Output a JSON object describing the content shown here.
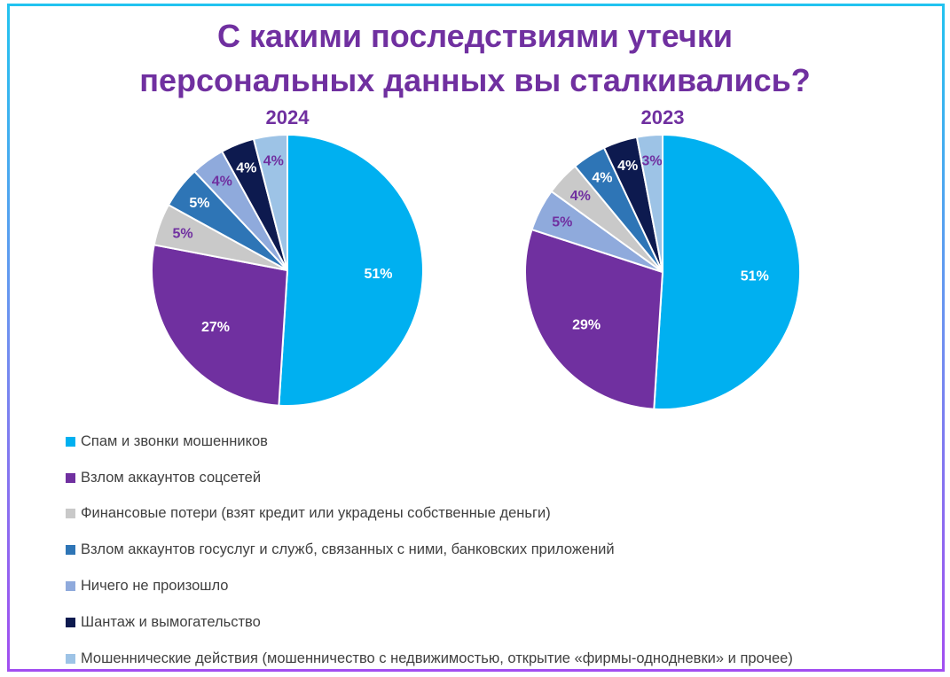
{
  "title_lines": [
    "С какими последствиями утечки",
    "персональных данных вы сталкивались?"
  ],
  "chart_data": [
    {
      "type": "pie",
      "title": "2024",
      "categories": [
        "Спам и звонки мошенников",
        "Взлом аккаунтов соцсетей",
        "Финансовые потери (взят кредит или украдены собственные деньги)",
        "Взлом аккаунтов госуслуг и служб, связанных с ними, банковских приложений",
        "Ничего не произошло",
        "Шантаж и вымогательство",
        "Мошеннические действия (мошенничество с недвижимостью, открытие «фирмы-однодневки» и прочее)"
      ],
      "values": [
        51,
        27,
        5,
        5,
        4,
        4,
        4
      ],
      "data_labels": [
        "51%",
        "27%",
        "5%",
        "5%",
        "4%",
        "4%",
        "4%"
      ]
    },
    {
      "type": "pie",
      "title": "2023",
      "categories": [
        "Спам и звонки мошенников",
        "Взлом аккаунтов соцсетей",
        "Ничего не произошло",
        "Финансовые потери (взят кредит или украдены собственные деньги)",
        "Взлом аккаунтов госуслуг и служб, связанных с ними, банковских приложений",
        "Шантаж и вымогательство",
        "Мошеннические действия (мошенничество с недвижимостью, открытие «фирмы-однодневки» и прочее)"
      ],
      "values": [
        51,
        29,
        5,
        4,
        4,
        4,
        3
      ],
      "data_labels": [
        "51%",
        "29%",
        "5%",
        "4%",
        "4%",
        "4%",
        "3%"
      ]
    }
  ],
  "legend": [
    {
      "label": "Спам и звонки мошенников",
      "color": "#00b0f0"
    },
    {
      "label": "Взлом аккаунтов соцсетей",
      "color": "#7030a0"
    },
    {
      "label": "Финансовые потери (взят кредит или украдены собственные деньги)",
      "color": "#c9c9c9"
    },
    {
      "label": "Взлом аккаунтов госуслуг и служб, связанных с ними, банковских приложений",
      "color": "#2e75b6"
    },
    {
      "label": "Ничего не произошло",
      "color": "#8faadc"
    },
    {
      "label": "Шантаж и вымогательство",
      "color": "#0d1a4f"
    },
    {
      "label": "Мошеннические действия (мошенничество с недвижимостью, открытие «фирмы-однодневки» и прочее)",
      "color": "#9dc3e6"
    }
  ]
}
